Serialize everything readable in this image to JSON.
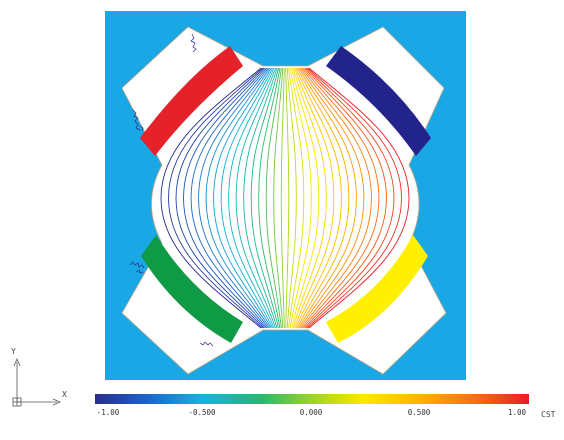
{
  "plot": {
    "background_color": "#1aa7e6",
    "coil_colors": {
      "top_left": "#e5222a",
      "top_right": "#23238c",
      "bottom_left": "#0f9a45",
      "bottom_right": "#ffef00"
    },
    "contour_count": 34
  },
  "colorbar": {
    "ticks": [
      "-1.00",
      "-0.500",
      "0.000",
      "0.500",
      "1.00"
    ],
    "units": "CST",
    "range": [
      -1.0,
      1.0
    ]
  },
  "axes": {
    "y_label": "Y",
    "x_label": "X"
  }
}
